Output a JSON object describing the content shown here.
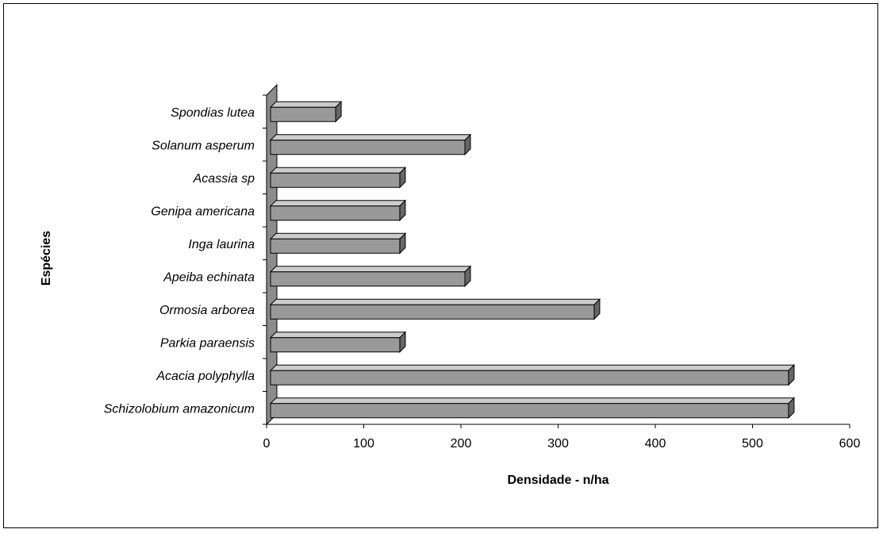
{
  "chart_data": {
    "type": "bar",
    "orientation": "horizontal",
    "style": "3d",
    "title": "",
    "xlabel": "Densidade - n/ha",
    "ylabel": "Espécies",
    "xlim": [
      0,
      600
    ],
    "xticks": [
      0,
      100,
      200,
      300,
      400,
      500,
      600
    ],
    "grid": false,
    "legend": "none",
    "categories": [
      "Schizolobium amazonicum",
      "Acacia polyphylla",
      "Parkia paraensis",
      "Ormosia arborea",
      "Apeiba echinata",
      "Inga laurina",
      "Genipa americana",
      "Acassia sp",
      "Solanum asperum",
      "Spondias lutea"
    ],
    "values": [
      533,
      533,
      133,
      333,
      200,
      133,
      133,
      133,
      200,
      67
    ],
    "colors": {
      "bar_front": "#999999",
      "bar_top": "#cccccc",
      "bar_side": "#666666",
      "wall": "#8c8c8c"
    }
  }
}
